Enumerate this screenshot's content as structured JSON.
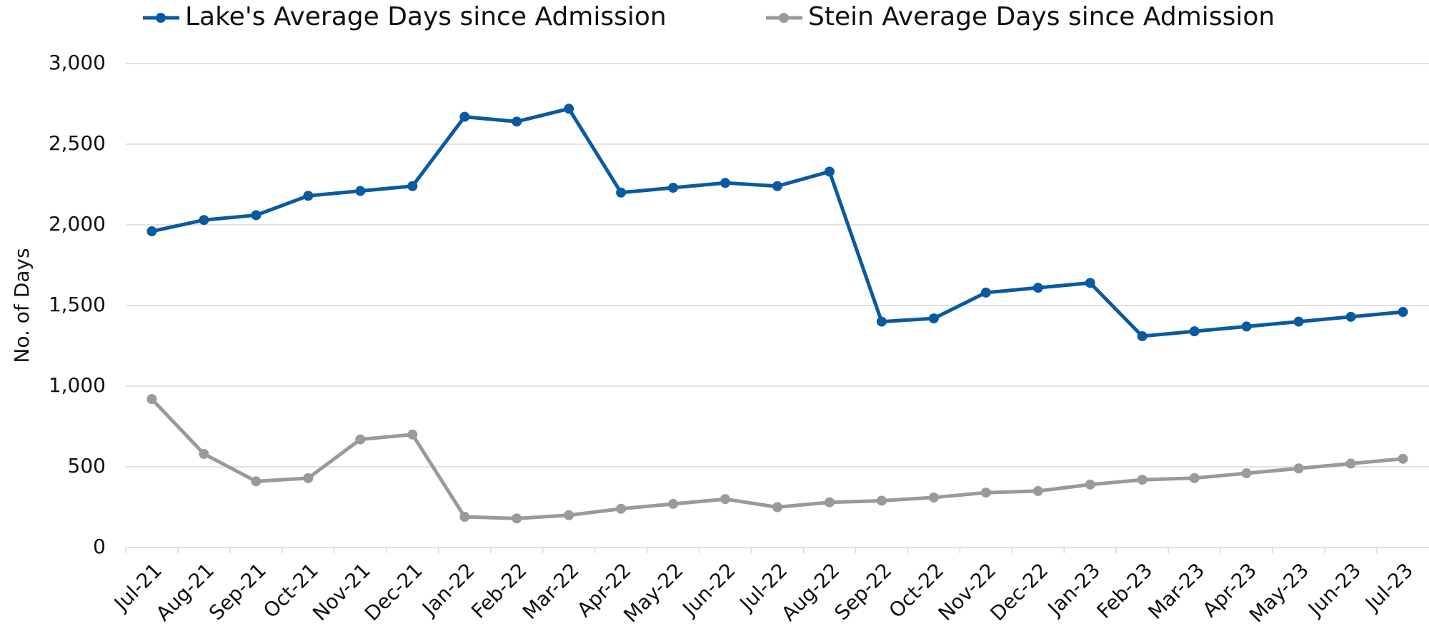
{
  "chart_data": {
    "type": "line",
    "y_label": "No. of Days",
    "categories": [
      "Jul-21",
      "Aug-21",
      "Sep-21",
      "Oct-21",
      "Nov-21",
      "Dec-21",
      "Jan-22",
      "Feb-22",
      "Mar-22",
      "Apr-22",
      "May-22",
      "Jun-22",
      "Jul-22",
      "Aug-22",
      "Sep-22",
      "Oct-22",
      "Nov-22",
      "Dec-22",
      "Jan-23",
      "Feb-23",
      "Mar-23",
      "Apr-23",
      "May-23",
      "Jun-23",
      "Jul-23"
    ],
    "series": [
      {
        "name": "Lake's Average Days since Admission",
        "color": "#0a5aa0",
        "values": [
          1960,
          2030,
          2060,
          2180,
          2210,
          2240,
          2670,
          2640,
          2720,
          2200,
          2230,
          2260,
          2240,
          2330,
          1400,
          1420,
          1580,
          1610,
          1640,
          1310,
          1340,
          1370,
          1400,
          1430,
          1460
        ]
      },
      {
        "name": "Stein Average Days since Admission",
        "color": "#9a9a9c",
        "values": [
          920,
          580,
          410,
          430,
          670,
          700,
          190,
          180,
          200,
          240,
          270,
          300,
          250,
          280,
          290,
          310,
          340,
          350,
          390,
          420,
          430,
          460,
          490,
          520,
          550
        ]
      }
    ],
    "ylim": [
      0,
      3000
    ],
    "yticks": [
      0,
      {
        "value": 500,
        "label": "500"
      },
      {
        "value": 1000,
        "label": "1,000"
      },
      {
        "value": 1500,
        "label": "1,500"
      },
      {
        "value": 2000,
        "label": "2,000"
      },
      {
        "value": 2500,
        "label": "2,500"
      },
      {
        "value": 3000,
        "label": "3,000"
      }
    ],
    "grid": true
  }
}
